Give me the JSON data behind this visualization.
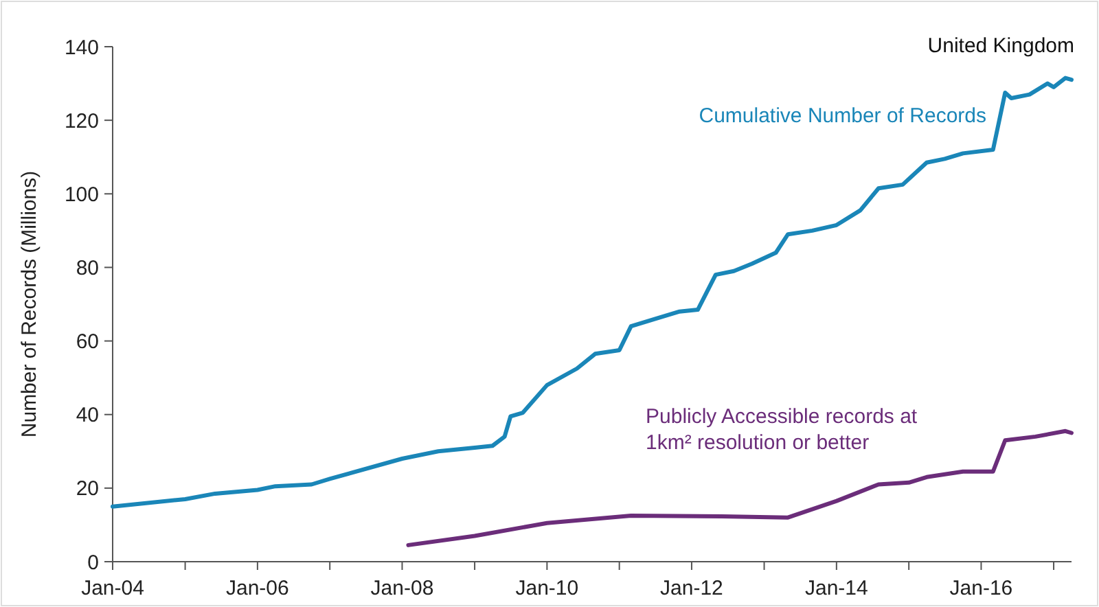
{
  "chart_data": {
    "type": "line",
    "ylabel": "Number of Records (Millions)",
    "annotations": [
      "United Kingdom"
    ],
    "xlim": [
      "2004-01",
      "2017-04"
    ],
    "xticks": [
      {
        "value": "2004-01",
        "label": "Jan-04"
      },
      {
        "value": "2005-01",
        "label": null
      },
      {
        "value": "2006-01",
        "label": "Jan-06"
      },
      {
        "value": "2007-01",
        "label": null
      },
      {
        "value": "2008-01",
        "label": "Jan-08"
      },
      {
        "value": "2009-01",
        "label": null
      },
      {
        "value": "2010-01",
        "label": "Jan-10"
      },
      {
        "value": "2011-01",
        "label": null
      },
      {
        "value": "2012-01",
        "label": "Jan-12"
      },
      {
        "value": "2013-01",
        "label": null
      },
      {
        "value": "2014-01",
        "label": "Jan-14"
      },
      {
        "value": "2015-01",
        "label": null
      },
      {
        "value": "2016-01",
        "label": "Jan-16"
      },
      {
        "value": "2017-01",
        "label": null
      }
    ],
    "ylim": [
      0,
      140
    ],
    "yticks": [
      0,
      20,
      40,
      60,
      80,
      100,
      120,
      140
    ],
    "grid": false,
    "line_style": "solid",
    "marker": "none",
    "series": [
      {
        "name": "Cumulative Number of Records",
        "color": "#1a86b8",
        "x": [
          "2004-01",
          "2005-01",
          "2005-06",
          "2006-01",
          "2006-04",
          "2006-10",
          "2007-01",
          "2008-01",
          "2008-07",
          "2009-01",
          "2009-04",
          "2009-06",
          "2009-07",
          "2009-09",
          "2010-01",
          "2010-06",
          "2010-09",
          "2011-01",
          "2011-03",
          "2011-07",
          "2011-11",
          "2012-02",
          "2012-05",
          "2012-08",
          "2012-11",
          "2013-03",
          "2013-05",
          "2013-09",
          "2014-01",
          "2014-05",
          "2014-08",
          "2014-12",
          "2015-04",
          "2015-07",
          "2015-10",
          "2016-03",
          "2016-05",
          "2016-06",
          "2016-09",
          "2016-12",
          "2017-01",
          "2017-03",
          "2017-04"
        ],
        "values": [
          15,
          17,
          18.5,
          19.5,
          20.5,
          21,
          22.5,
          28,
          30,
          31,
          31.5,
          34,
          39.5,
          40.5,
          48,
          52.5,
          56.5,
          57.5,
          64,
          66,
          68,
          68.5,
          78,
          79,
          81,
          84,
          89,
          90,
          91.5,
          95.5,
          101.5,
          102.5,
          108.5,
          109.5,
          111,
          112,
          127.5,
          126,
          127,
          130,
          129,
          131.5,
          131
        ]
      },
      {
        "name": "Publicly Accessible records at 1km² resolution or better",
        "color": "#6b2d7a",
        "x": [
          "2008-02",
          "2009-01",
          "2010-01",
          "2011-03",
          "2012-06",
          "2013-05",
          "2014-01",
          "2014-08",
          "2015-01",
          "2015-04",
          "2015-10",
          "2016-03",
          "2016-05",
          "2016-10",
          "2017-03",
          "2017-04"
        ],
        "values": [
          4.5,
          7,
          10.5,
          12.5,
          12.3,
          12,
          16.5,
          21,
          21.5,
          23,
          24.5,
          24.5,
          33,
          34,
          35.5,
          35
        ]
      }
    ]
  }
}
